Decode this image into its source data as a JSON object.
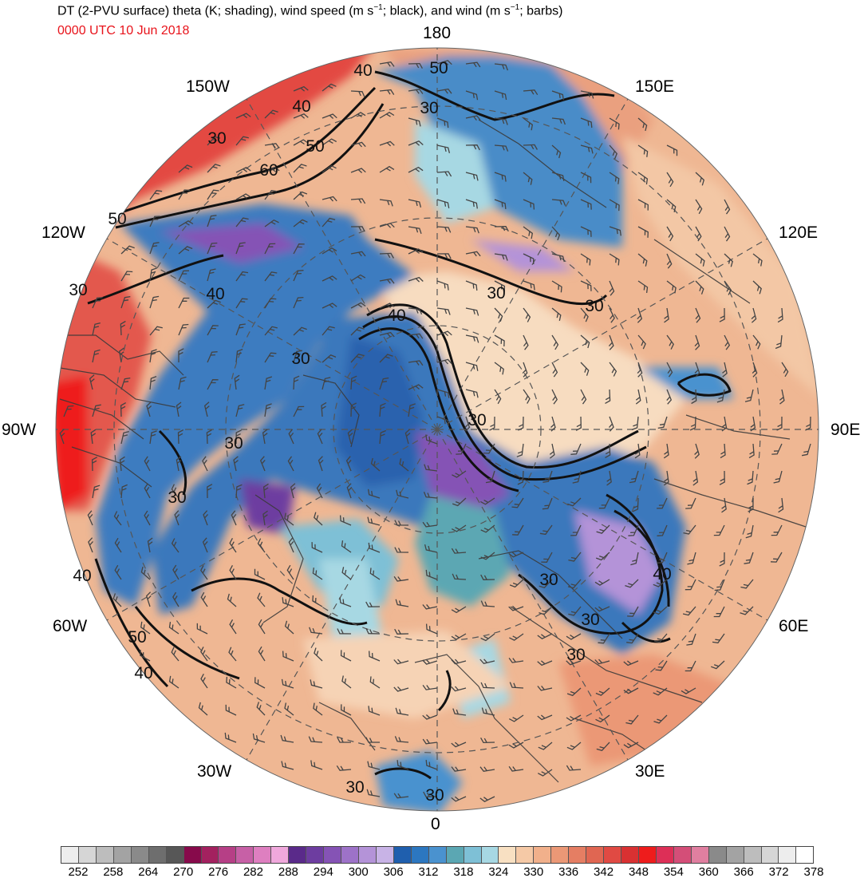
{
  "title": {
    "main_pre": "DT (2-PVU surface) theta (K; shading), wind speed (m s",
    "sup1": "−1",
    "main_mid": "; black), and wind (m s",
    "sup2": "−1",
    "main_post": "; barbs)",
    "time": "0000 UTC 10 Jun 2018",
    "time_color": "#e8131b"
  },
  "longitude_labels": {
    "l180": "180",
    "l150w": "150W",
    "l150e": "150E",
    "l120w": "120W",
    "l120e": "120E",
    "l90w": "90W",
    "l90e": "90E",
    "l60w": "60W",
    "l60e": "60E",
    "l30w": "30W",
    "l30e": "30E",
    "l0": "0"
  },
  "contour_labels": [
    "50",
    "40",
    "30",
    "40",
    "50",
    "60",
    "30",
    "50",
    "30",
    "40",
    "30",
    "30",
    "30",
    "30",
    "40",
    "50",
    "40",
    "40",
    "30",
    "30",
    "30",
    "30",
    "30",
    "30",
    "30",
    "40"
  ],
  "colorbar": {
    "colors": [
      "#ededed",
      "#d6d6d6",
      "#bdbdbd",
      "#a3a3a3",
      "#8a8a8a",
      "#6e6e6e",
      "#575757",
      "#870a4b",
      "#a3215f",
      "#b63f86",
      "#c760a6",
      "#de7fc0",
      "#f0a8dc",
      "#5a2a8a",
      "#6d3da0",
      "#8553b5",
      "#9d72c8",
      "#b493d8",
      "#c8b3e6",
      "#1f5fae",
      "#2c77c0",
      "#4a92cf",
      "#5ba7b3",
      "#7ec0d6",
      "#a7d8e3",
      "#f8e0c2",
      "#f5c9a6",
      "#f1b08b",
      "#eb9876",
      "#e57e63",
      "#e06652",
      "#e04a43",
      "#d93132",
      "#ee1c1c",
      "#dd2f57",
      "#d44e78",
      "#e07fa0",
      "#8a8a8a",
      "#a3a3a3",
      "#bdbdbd",
      "#d6d6d6",
      "#ededed",
      "#ffffff"
    ],
    "ticks": [
      "252",
      "258",
      "264",
      "270",
      "276",
      "282",
      "288",
      "294",
      "300",
      "306",
      "312",
      "318",
      "324",
      "330",
      "336",
      "342",
      "348",
      "354",
      "360",
      "366",
      "372",
      "378"
    ]
  }
}
